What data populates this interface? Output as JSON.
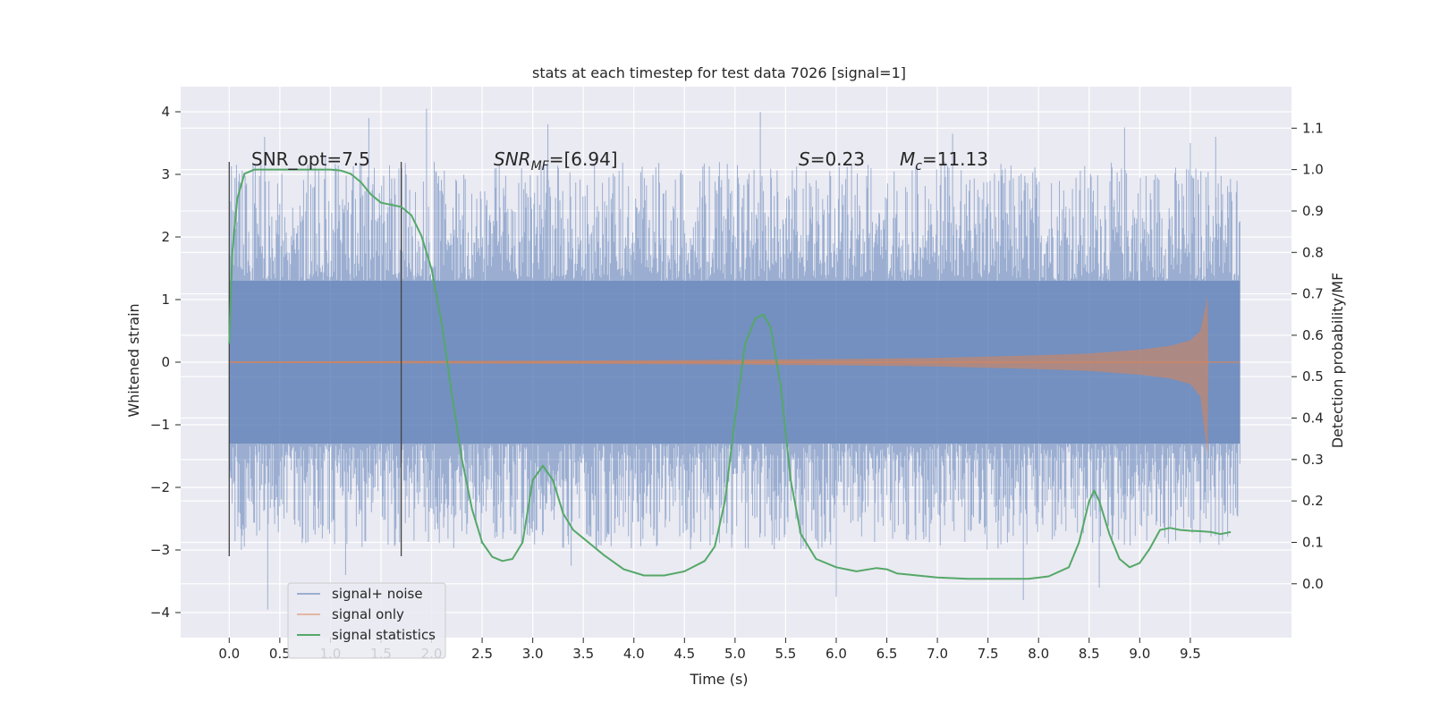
{
  "chart_data": {
    "type": "line",
    "title": "stats at each timestep for test data 7026 [signal=1]",
    "xlabel": "Time (s)",
    "ylabel": "Whitened strain",
    "y2label": "Detection probability/MF",
    "xlim": [
      -0.48,
      10.5
    ],
    "ylim": [
      -4.4,
      4.4
    ],
    "y2lim": [
      -0.13,
      1.2
    ],
    "x_ticks": [
      0.0,
      0.5,
      1.0,
      1.5,
      2.0,
      2.5,
      3.0,
      3.5,
      4.0,
      4.5,
      5.0,
      5.5,
      6.0,
      6.5,
      7.0,
      7.5,
      8.0,
      8.5,
      9.0,
      9.5
    ],
    "x_tick_labels": [
      "0.0",
      "0.5",
      "1.0",
      "1.5",
      "2.0",
      "2.5",
      "3.0",
      "3.5",
      "4.0",
      "4.5",
      "5.0",
      "5.5",
      "6.0",
      "6.5",
      "7.0",
      "7.5",
      "8.0",
      "8.5",
      "9.0",
      "9.5"
    ],
    "y_ticks": [
      -4,
      -3,
      -2,
      -1,
      0,
      1,
      2,
      3,
      4
    ],
    "y_tick_labels": [
      "−4",
      "−3",
      "−2",
      "−1",
      "0",
      "1",
      "2",
      "3",
      "4"
    ],
    "y2_ticks": [
      0.0,
      0.1,
      0.2,
      0.3,
      0.4,
      0.5,
      0.6,
      0.7,
      0.8,
      0.9,
      1.0,
      1.1
    ],
    "y2_tick_labels": [
      "0.0",
      "0.1",
      "0.2",
      "0.3",
      "0.4",
      "0.5",
      "0.6",
      "0.7",
      "0.8",
      "0.9",
      "1.0",
      "1.1"
    ],
    "grid": true,
    "legend_position": "lower-left",
    "annotations": {
      "snr_opt": "SNR_opt=7.5",
      "snr_mf_main": "SNR",
      "snr_mf_sub": "MF",
      "snr_mf_rest": "=[6.94]",
      "s_main": "S",
      "s_rest": "=0.23",
      "mc_main": "M",
      "mc_sub": "c",
      "mc_rest": "=11.13"
    },
    "vertical_lines": [
      {
        "x": 0.0,
        "y_range": [
          -3.1,
          3.2
        ]
      },
      {
        "x": 1.7,
        "y_range": [
          -3.1,
          3.2
        ]
      }
    ],
    "series": [
      {
        "name": "signal+ noise",
        "color": "#4c72b0",
        "axis": "left",
        "x_range": [
          0.0,
          9.99
        ],
        "envelope_core": [
          -1.3,
          1.3
        ],
        "peaks": [
          {
            "x": 0.0,
            "y": 1.6
          },
          {
            "x": 0.05,
            "y": 2.4
          },
          {
            "x": 0.12,
            "y": -3.0
          },
          {
            "x": 0.35,
            "y": 3.6
          },
          {
            "x": 0.38,
            "y": -3.95
          },
          {
            "x": 0.95,
            "y": 3.3
          },
          {
            "x": 1.15,
            "y": -3.4
          },
          {
            "x": 1.38,
            "y": 3.9
          },
          {
            "x": 1.75,
            "y": 3.0
          },
          {
            "x": 1.95,
            "y": 4.05
          },
          {
            "x": 2.3,
            "y": -2.7
          },
          {
            "x": 3.15,
            "y": 3.8
          },
          {
            "x": 3.38,
            "y": -3.25
          },
          {
            "x": 5.25,
            "y": 4.0
          },
          {
            "x": 6.0,
            "y": -3.75
          },
          {
            "x": 7.15,
            "y": 3.65
          },
          {
            "x": 7.85,
            "y": -3.8
          },
          {
            "x": 8.85,
            "y": 3.75
          },
          {
            "x": 8.6,
            "y": -3.6
          },
          {
            "x": 9.5,
            "y": 3.5
          },
          {
            "x": 9.75,
            "y": 3.6
          }
        ]
      },
      {
        "name": "signal only",
        "color": "#dd8452",
        "axis": "left",
        "amplitude_x": [
          0.0,
          2.0,
          4.0,
          5.0,
          6.0,
          7.0,
          7.5,
          8.0,
          8.5,
          9.0,
          9.3,
          9.5,
          9.6,
          9.67,
          9.68,
          10.0
        ],
        "amplitude_y": [
          0.01,
          0.02,
          0.03,
          0.04,
          0.05,
          0.07,
          0.09,
          0.11,
          0.14,
          0.2,
          0.26,
          0.35,
          0.5,
          1.05,
          0.0,
          0.0
        ],
        "amplitude_y_neg": [
          0.01,
          0.02,
          0.03,
          0.04,
          0.05,
          0.07,
          0.09,
          0.11,
          0.14,
          0.2,
          0.26,
          0.35,
          0.55,
          1.5,
          0.0,
          0.0
        ]
      },
      {
        "name": "signal statistics",
        "color": "#55a868",
        "axis": "right",
        "x": [
          0.0,
          0.03,
          0.08,
          0.15,
          0.25,
          0.4,
          0.6,
          0.8,
          1.0,
          1.1,
          1.2,
          1.3,
          1.4,
          1.5,
          1.6,
          1.7,
          1.8,
          1.9,
          2.0,
          2.1,
          2.2,
          2.3,
          2.4,
          2.5,
          2.6,
          2.7,
          2.8,
          2.9,
          3.0,
          3.1,
          3.2,
          3.3,
          3.4,
          3.5,
          3.7,
          3.9,
          4.1,
          4.3,
          4.5,
          4.7,
          4.8,
          4.9,
          5.0,
          5.1,
          5.2,
          5.28,
          5.35,
          5.45,
          5.55,
          5.65,
          5.8,
          6.0,
          6.2,
          6.4,
          6.5,
          6.6,
          6.8,
          7.0,
          7.3,
          7.6,
          7.9,
          8.1,
          8.3,
          8.4,
          8.5,
          8.55,
          8.6,
          8.7,
          8.8,
          8.9,
          9.0,
          9.1,
          9.2,
          9.3,
          9.4,
          9.5,
          9.6,
          9.7,
          9.8,
          9.9
        ],
        "y": [
          0.58,
          0.8,
          0.93,
          0.99,
          1.0,
          1.0,
          1.0,
          1.0,
          1.0,
          0.998,
          0.99,
          0.97,
          0.94,
          0.92,
          0.915,
          0.91,
          0.89,
          0.84,
          0.76,
          0.63,
          0.46,
          0.3,
          0.18,
          0.1,
          0.065,
          0.055,
          0.06,
          0.1,
          0.25,
          0.285,
          0.25,
          0.17,
          0.13,
          0.11,
          0.07,
          0.035,
          0.02,
          0.02,
          0.03,
          0.055,
          0.09,
          0.2,
          0.4,
          0.58,
          0.64,
          0.65,
          0.62,
          0.48,
          0.25,
          0.12,
          0.06,
          0.04,
          0.03,
          0.038,
          0.035,
          0.025,
          0.02,
          0.015,
          0.012,
          0.012,
          0.012,
          0.018,
          0.04,
          0.1,
          0.2,
          0.225,
          0.2,
          0.12,
          0.06,
          0.04,
          0.05,
          0.085,
          0.13,
          0.135,
          0.13,
          0.128,
          0.127,
          0.125,
          0.12,
          0.125
        ]
      }
    ]
  }
}
